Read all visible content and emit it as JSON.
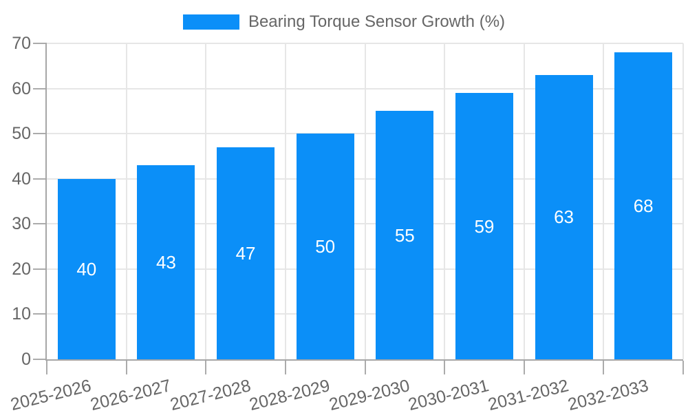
{
  "chart_data": {
    "type": "bar",
    "title": "Bearing Torque Sensor Growth (%)",
    "categories": [
      "2025-2026",
      "2026-2027",
      "2027-2028",
      "2028-2029",
      "2029-2030",
      "2030-2031",
      "2031-2032",
      "2032-2033"
    ],
    "values": [
      40,
      43,
      47,
      50,
      55,
      59,
      63,
      68
    ],
    "xlabel": "",
    "ylabel": "",
    "ylim": [
      0,
      70
    ],
    "yticks": [
      0,
      10,
      20,
      30,
      40,
      50,
      60,
      70
    ],
    "grid": true,
    "legend_position": "top",
    "colors": {
      "bar": "#0b8ff8",
      "datalabel": "#ffffff",
      "axis_text": "#666666",
      "grid_line": "#e6e6e6",
      "axis_line": "#a6a6a6",
      "tick_mark": "#ababab",
      "background": "#ffffff"
    }
  }
}
